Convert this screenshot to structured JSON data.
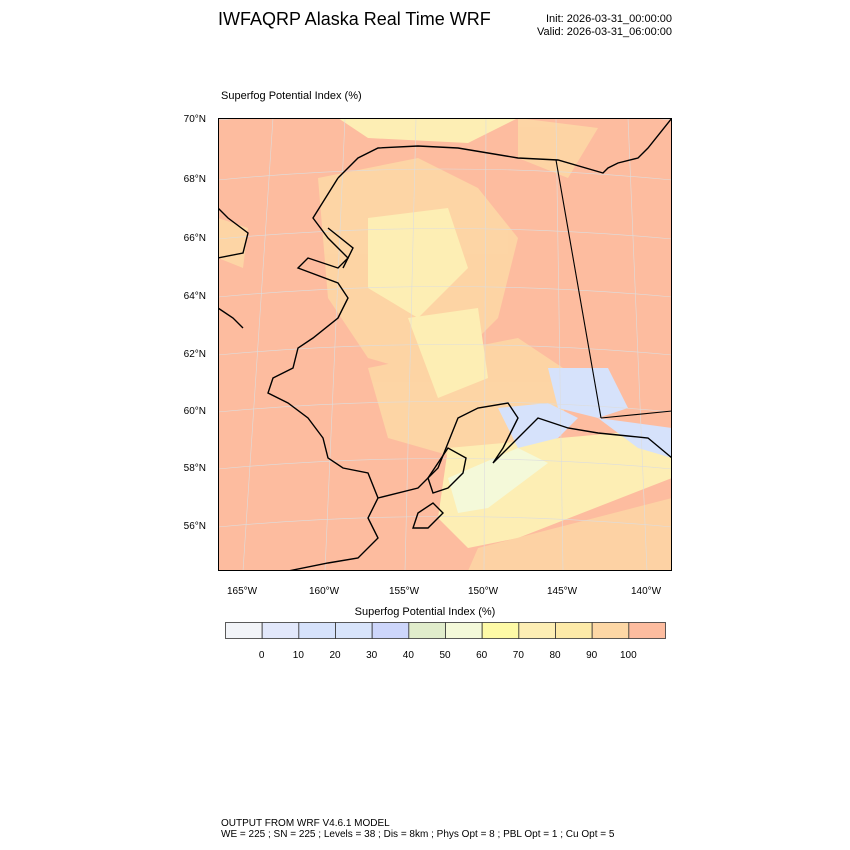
{
  "header": {
    "title": "IWFAQRP Alaska Real Time WRF",
    "init": "Init: 2026-03-31_00:00:00",
    "valid": "Valid: 2026-03-31_06:00:00"
  },
  "plot": {
    "subtitle": "Superfog Potential Index   (%)",
    "lat_labels": [
      "70°N",
      "68°N",
      "66°N",
      "64°N",
      "62°N",
      "60°N",
      "58°N",
      "56°N"
    ],
    "lon_labels": [
      "165°W",
      "160°W",
      "155°W",
      "150°W",
      "145°W",
      "140°W"
    ],
    "dominant_color": "#fdbc9f"
  },
  "colorbar": {
    "title": "Superfog Potential Index  (%)",
    "labels": [
      "0",
      "10",
      "20",
      "30",
      "40",
      "50",
      "60",
      "70",
      "80",
      "90",
      "100"
    ],
    "colors": [
      "#f2f4f8",
      "#e2e8fb",
      "#d6e2fb",
      "#d8e4fb",
      "#cdd6fb",
      "#e0eccb",
      "#f4f9d9",
      "#fefaa6",
      "#fdeeb4",
      "#fdeaa8",
      "#fdd7a5",
      "#fdbc9f"
    ]
  },
  "footer": {
    "line1": "OUTPUT FROM WRF V4.6.1 MODEL",
    "line2": "WE = 225 ; SN = 225 ; Levels = 38 ; Dis = 8km ; Phys Opt = 8 ; PBL Opt = 1 ; Cu Opt = 5"
  }
}
